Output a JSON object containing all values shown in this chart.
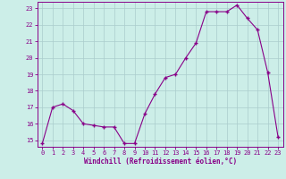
{
  "x": [
    0,
    1,
    2,
    3,
    4,
    5,
    6,
    7,
    8,
    9,
    10,
    11,
    12,
    13,
    14,
    15,
    16,
    17,
    18,
    19,
    20,
    21,
    22,
    23
  ],
  "y": [
    14.8,
    17.0,
    17.2,
    16.8,
    16.0,
    15.9,
    15.8,
    15.8,
    14.8,
    14.8,
    16.6,
    17.8,
    18.8,
    19.0,
    20.0,
    20.9,
    22.8,
    22.8,
    22.8,
    23.2,
    22.4,
    21.7,
    19.1,
    15.2
  ],
  "xlabel": "Windchill (Refroidissement éolien,°C)",
  "bg_color": "#cceee8",
  "grid_color": "#aacccc",
  "line_color": "#880088",
  "marker_color": "#880088",
  "ylim_min": 14.6,
  "ylim_max": 23.4,
  "xlim_min": -0.5,
  "xlim_max": 23.5,
  "yticks": [
    15,
    16,
    17,
    18,
    19,
    20,
    21,
    22,
    23
  ],
  "xticks": [
    0,
    1,
    2,
    3,
    4,
    5,
    6,
    7,
    8,
    9,
    10,
    11,
    12,
    13,
    14,
    15,
    16,
    17,
    18,
    19,
    20,
    21,
    22,
    23
  ]
}
